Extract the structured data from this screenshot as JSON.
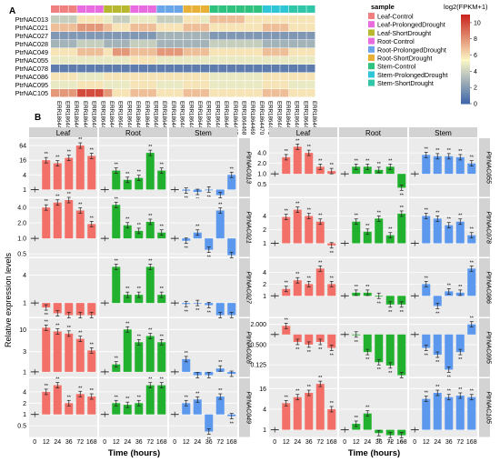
{
  "panel_a_label": "A",
  "panel_b_label": "B",
  "chart_data": [
    {
      "type": "heatmap",
      "rows": [
        "PtrNAC013",
        "PtrNAC021",
        "PtrNAC027",
        "PtrNAC028",
        "PtrNAC049",
        "PtrNAC055",
        "PtrNAC078",
        "PtrNAC086",
        "PtrNAC095",
        "PtrNAC105"
      ],
      "columns": [
        "ERR1864411",
        "ERR1864412",
        "ERR1864413",
        "ERR1864417",
        "ERR1864418",
        "ERR1864419",
        "ERR1864420",
        "ERR1864430",
        "ERR1864431",
        "ERR1864438",
        "ERR1864439",
        "ERR1864440",
        "ERR1864445",
        "ERR1864446",
        "ERR1864447",
        "ERR1864456",
        "ERR1864457",
        "ERR1864458",
        "ERR1864465",
        "ERR1864466",
        "ERR1864467",
        "ERR1864468",
        "ERR1864469",
        "ERR1864470",
        "ERR1864472",
        "ERR1864473",
        "ERR1864474",
        "ERR1864482",
        "ERR1864483",
        "ERR1864484"
      ],
      "column_groups": [
        "Leaf-Control",
        "Leaf-ProlongedDrought",
        "Leaf-ShortDrought",
        "Root-Control",
        "Root-ProlongedDrought",
        "Root-ShortDrought",
        "Stem-Control",
        "Stem-ProlongedDrought",
        "Stem-ShortDrought"
      ],
      "row_values": [
        [
          4,
          4,
          4,
          6,
          6,
          6,
          5,
          4,
          4,
          5,
          5,
          5,
          4,
          4,
          4,
          6,
          6,
          5,
          7,
          7,
          7,
          7,
          6,
          6,
          6,
          6,
          6,
          6,
          6,
          6
        ],
        [
          7,
          7,
          7,
          8,
          8,
          8,
          7,
          6,
          6,
          7,
          7,
          7,
          6,
          6,
          6,
          7,
          7,
          7,
          6,
          6,
          6,
          6,
          6,
          6,
          7,
          7,
          7,
          6,
          6,
          6
        ],
        [
          2,
          2,
          2,
          2,
          2,
          2,
          2,
          2,
          2,
          2,
          2,
          2,
          3,
          3,
          3,
          3,
          3,
          3,
          2,
          2,
          2,
          2,
          2,
          2,
          2,
          2,
          2,
          2,
          2,
          2
        ],
        [
          3,
          3,
          3,
          4,
          4,
          4,
          3,
          3,
          3,
          4,
          4,
          4,
          3,
          3,
          3,
          3,
          3,
          3,
          4,
          4,
          4,
          4,
          4,
          4,
          3,
          3,
          3,
          3,
          3,
          3
        ],
        [
          6,
          6,
          6,
          7,
          7,
          7,
          6,
          8,
          8,
          7,
          7,
          7,
          8,
          8,
          8,
          7,
          7,
          7,
          6,
          6,
          6,
          6,
          6,
          6,
          7,
          7,
          7,
          6,
          6,
          6
        ],
        [
          5,
          5,
          5,
          5,
          5,
          5,
          5,
          5,
          5,
          6,
          6,
          6,
          5,
          5,
          5,
          5,
          5,
          5,
          5,
          5,
          5,
          5,
          5,
          5,
          5,
          5,
          5,
          5,
          5,
          5
        ],
        [
          1,
          1,
          1,
          1,
          1,
          1,
          1,
          1,
          1,
          1,
          1,
          1,
          1,
          1,
          1,
          1,
          1,
          1,
          1,
          1,
          1,
          1,
          1,
          1,
          1,
          1,
          1,
          1,
          1,
          1
        ],
        [
          6,
          6,
          6,
          5,
          5,
          5,
          6,
          6,
          6,
          6,
          6,
          6,
          6,
          6,
          6,
          6,
          6,
          6,
          5,
          5,
          5,
          5,
          5,
          5,
          6,
          6,
          6,
          6,
          6,
          6
        ],
        [
          5,
          5,
          5,
          6,
          6,
          6,
          5,
          5,
          5,
          6,
          6,
          6,
          5,
          5,
          5,
          6,
          6,
          6,
          5,
          5,
          5,
          5,
          5,
          5,
          6,
          6,
          6,
          5,
          5,
          5
        ],
        [
          8,
          8,
          8,
          10,
          10,
          10,
          8,
          6,
          6,
          7,
          7,
          7,
          6,
          6,
          6,
          7,
          7,
          7,
          6,
          6,
          6,
          6,
          6,
          6,
          7,
          7,
          7,
          6,
          6,
          6
        ]
      ],
      "legend_title": "sample",
      "colorbar_title": "log2(FPKM+1)",
      "colorbar_ticks": [
        0,
        2,
        4,
        6,
        8,
        10
      ],
      "colorbar_range": [
        0,
        11
      ],
      "colors": {
        "Leaf-Control": "#f08080",
        "Leaf-ProlongedDrought": "#e86be0",
        "Leaf-ShortDrought": "#b8b830",
        "Root-Control": "#e86be0",
        "Root-ProlongedDrought": "#6aa5ea",
        "Root-ShortDrought": "#e9b038",
        "Stem-Control": "#2fc27f",
        "Stem-ProlongedDrought": "#2ec6d6",
        "Stem-ShortDrought": "#32c6a8",
        "low": "#3a61a8",
        "mid": "#fbf7c6",
        "high": "#c9251f"
      }
    },
    {
      "type": "bar",
      "ylabel": "Relative expression levels",
      "xlabel": "Time (hours)",
      "x_ticks": [
        "0",
        "12",
        "24",
        "36",
        "72",
        "168"
      ],
      "tissues": [
        "Leaf",
        "Root",
        "Stem"
      ],
      "significance_mark": "**",
      "colors": {
        "Leaf": "#f37068",
        "Root": "#22b12f",
        "Stem": "#5b98ee",
        "control": "#ffffff",
        "strip": "#d3d3d3",
        "panel": "#ebebeb"
      },
      "columns": [
        {
          "genes": [
            {
              "name": "PtrNAC013",
              "y_ticks": [
                "64",
                "16",
                "4",
                "1"
              ],
              "y_range_log2": [
                -1,
                7
              ],
              "Leaf": [
                1,
                16,
                12,
                20,
                64,
                24
              ],
              "Root": [
                1,
                6,
                2.5,
                3,
                32,
                6
              ],
              "Stem": [
                1,
                0.9,
                0.8,
                1,
                0.25,
                4
              ]
            },
            {
              "name": "PtrNAC021",
              "y_ticks": [
                "4.0",
                "2.0",
                "1.0",
                "0.5"
              ],
              "y_range_log2": [
                -1.2,
                2.6
              ],
              "Leaf": [
                1,
                4,
                5,
                6,
                3.5,
                1.9
              ],
              "Root": [
                1,
                4.5,
                1.8,
                1.4,
                2.1,
                1.3
              ],
              "Stem": [
                1,
                0.9,
                1.3,
                0.6,
                3.5,
                0.4
              ]
            },
            {
              "name": "PtrNAC027",
              "y_ticks": [
                "4",
                "1"
              ],
              "y_range_log2": [
                -1,
                3.2
              ],
              "Leaf": [
                1,
                0.8,
                0.6,
                0.5,
                0.45,
                0.3
              ],
              "Root": [
                1,
                6,
                1.5,
                1.5,
                6,
                1.5
              ],
              "Stem": [
                1,
                0.95,
                1,
                0.9,
                0.5,
                0.55
              ]
            },
            {
              "name": "PtrNAC028",
              "y_ticks": [
                "10",
                "3",
                "1"
              ],
              "y_range_log2": [
                -0.4,
                4.2
              ],
              "Leaf": [
                1,
                11,
                9,
                8,
                6,
                3.2
              ],
              "Root": [
                1,
                1.5,
                10,
                5,
                7,
                5
              ],
              "Stem": [
                1,
                2,
                0.8,
                0.7,
                1.2,
                0.9
              ]
            },
            {
              "name": "PtrNAC049",
              "y_ticks": [
                "4",
                "2",
                "1",
                "0.5"
              ],
              "y_range_log2": [
                -2,
                3.2
              ],
              "Leaf": [
                1,
                4,
                6,
                2,
                3.5,
                3
              ],
              "Root": [
                1,
                2,
                1.8,
                2,
                6,
                6
              ],
              "Stem": [
                1,
                2,
                2.5,
                0.35,
                3,
                0.9
              ]
            }
          ]
        },
        {
          "genes": [
            {
              "name": "PtrNAC055",
              "y_ticks": [
                "4.0",
                "2.0",
                "1.0",
                "0.5"
              ],
              "y_range_log2": [
                -2.2,
                3.4
              ],
              "Leaf": [
                1,
                3,
                6,
                4,
                1.6,
                1.2
              ],
              "Root": [
                1,
                1.6,
                1.6,
                1.3,
                1.6,
                0.4
              ],
              "Stem": [
                1,
                3.5,
                3.2,
                3.2,
                3,
                2
              ]
            },
            {
              "name": "PtrNAC078",
              "y_ticks": [
                "4",
                "2",
                "1"
              ],
              "y_range_log2": [
                -1,
                3.3
              ],
              "Leaf": [
                1,
                3.8,
                5.5,
                4,
                3,
                0.9
              ],
              "Root": [
                1,
                3,
                1.8,
                3.5,
                1.5,
                4.5
              ],
              "Stem": [
                1,
                4,
                3.5,
                2.5,
                3,
                1.5
              ]
            },
            {
              "name": "PtrNAC086",
              "y_ticks": [
                "4",
                "2",
                "1"
              ],
              "y_range_log2": [
                -1.8,
                3.2
              ],
              "Leaf": [
                1,
                1.5,
                2.5,
                2,
                5,
                2
              ],
              "Root": [
                1,
                1.2,
                1.2,
                1,
                0.6,
                0.6
              ],
              "Stem": [
                1,
                2,
                0.55,
                1.3,
                1.2,
                5
              ]
            },
            {
              "name": "PtrNAC095",
              "y_ticks": [
                "2.000",
                "0.500",
                "0.125"
              ],
              "y_range_log2": [
                -4.2,
                1.6
              ],
              "Leaf": [
                1,
                1.8,
                0.6,
                0.5,
                0.6,
                0.4
              ],
              "Root": [
                1,
                1,
                0.3,
                0.15,
                0.12,
                0.06
              ],
              "Stem": [
                1,
                0.4,
                0.25,
                0.09,
                0.3,
                2
              ]
            },
            {
              "name": "PtrNAC105",
              "y_ticks": [
                "16",
                "4",
                "1"
              ],
              "y_range_log2": [
                -0.7,
                5
              ],
              "Leaf": [
                1,
                6,
                9,
                12,
                22,
                4
              ],
              "Root": [
                1,
                1.5,
                3,
                0.8,
                0.6,
                0.6
              ],
              "Stem": [
                1,
                8,
                12,
                9,
                10,
                9
              ]
            }
          ]
        }
      ]
    }
  ]
}
